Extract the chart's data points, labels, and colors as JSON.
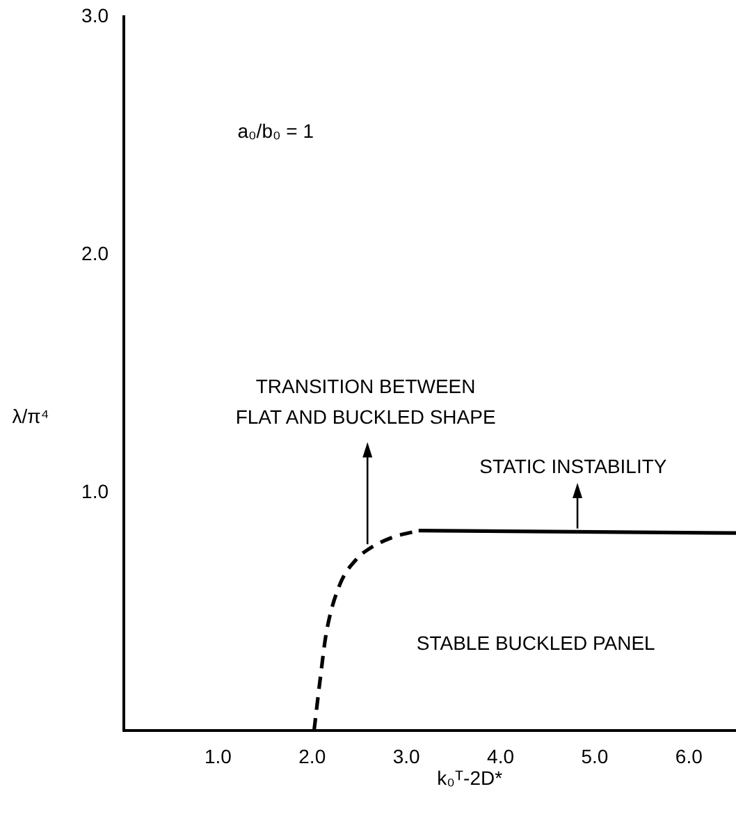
{
  "chart_data": {
    "type": "line",
    "xlabel": "k₀ᵀ-2D*",
    "ylabel": "λ/π⁴",
    "xlim": [
      0,
      6.5
    ],
    "ylim": [
      0,
      3
    ],
    "xticks": [
      {
        "value": 1,
        "label": "1.0"
      },
      {
        "value": 2,
        "label": "2.0"
      },
      {
        "value": 3,
        "label": "3.0"
      },
      {
        "value": 4,
        "label": "4.0"
      },
      {
        "value": 5,
        "label": "5.0"
      },
      {
        "value": 6,
        "label": "6.0"
      }
    ],
    "yticks": [
      {
        "value": 1,
        "label": "1.0"
      },
      {
        "value": 2,
        "label": "2.0"
      },
      {
        "value": 3,
        "label": "3.0"
      }
    ],
    "grid": false,
    "legend": false,
    "marker": "none",
    "series": [
      {
        "color": "#000000",
        "line_style": "dashed",
        "x": [
          2.02,
          2.08,
          2.15,
          2.29,
          2.47,
          2.59,
          2.84,
          3.13
        ],
        "values": [
          0,
          0.2,
          0.41,
          0.61,
          0.72,
          0.76,
          0.81,
          0.84
        ]
      },
      {
        "color": "#000000",
        "line_style": "solid",
        "x": [
          3.13,
          6.5
        ],
        "values": [
          0.84,
          0.83
        ]
      }
    ],
    "annotations": [
      "a₀/b₀ = 1",
      "TRANSITION BETWEEN\nFLAT AND BUCKLED SHAPE",
      "STATIC INSTABILITY",
      "STABLE BUCKLED PANEL"
    ]
  }
}
